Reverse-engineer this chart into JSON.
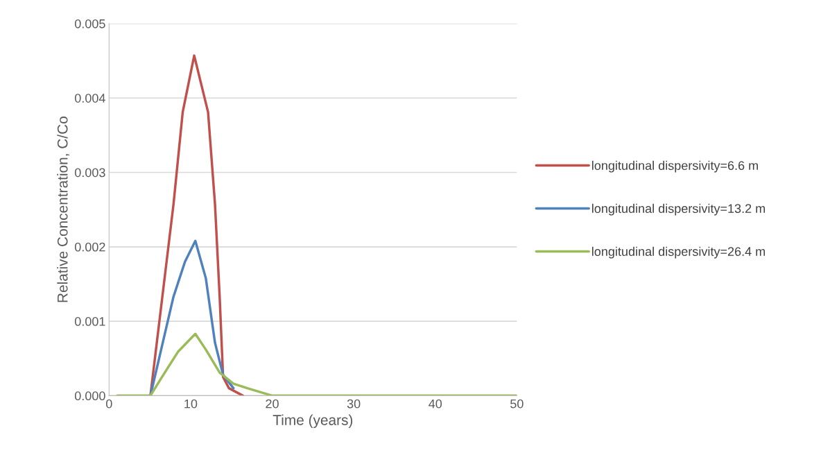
{
  "chart_data": {
    "type": "line",
    "xlabel": "Time (years)",
    "ylabel": "Relative Concentration, C/Co",
    "xlim": [
      0,
      50
    ],
    "xticks": [
      0,
      10,
      20,
      30,
      40,
      50
    ],
    "ylim": [
      0,
      0.005
    ],
    "yticks": [
      {
        "value": 0,
        "label": "0.000"
      },
      {
        "value": 0.001,
        "label": "0.001"
      },
      {
        "value": 0.002,
        "label": "0.002"
      },
      {
        "value": 0.003,
        "label": "0.003"
      },
      {
        "value": 0.004,
        "label": "0.004"
      },
      {
        "value": 0.005,
        "label": "0.005"
      }
    ],
    "grid": "y",
    "legend": "right",
    "marker": "none",
    "line_style": "solid",
    "series": [
      {
        "name": "longitudinal dispersivity=6.6 m",
        "color": "#c0504d",
        "x": [
          5.07,
          7.9,
          9.03,
          10.44,
          12.14,
          12.99,
          13.56,
          13.98,
          14.7,
          16.4
        ],
        "values": [
          0,
          0.00257,
          0.00381,
          0.00457,
          0.00381,
          0.00257,
          0.00133,
          0.00025,
          0.0001,
          0
        ]
      },
      {
        "name": "longitudinal dispersivity=13.2 m",
        "color": "#4f81bd",
        "x": [
          5.07,
          7.9,
          9.31,
          10.58,
          11.86,
          12.99,
          13.98,
          15.25
        ],
        "values": [
          0,
          0.00133,
          0.0018,
          0.00208,
          0.00158,
          0.00071,
          0.00028,
          0.0001
        ]
      },
      {
        "name": "longitudinal dispersivity=26.4 m",
        "color": "#9bbb59",
        "x": [
          1,
          2,
          3,
          4,
          5.07,
          6.48,
          8.46,
          10.58,
          11.86,
          13.56,
          15.25,
          16.95,
          20,
          30,
          40,
          50
        ],
        "values": [
          0,
          0,
          0,
          0,
          0,
          0.00025,
          0.00059,
          0.00083,
          0.00062,
          0.00031,
          0.00016,
          0.0001,
          0,
          0,
          0,
          0
        ]
      }
    ]
  }
}
